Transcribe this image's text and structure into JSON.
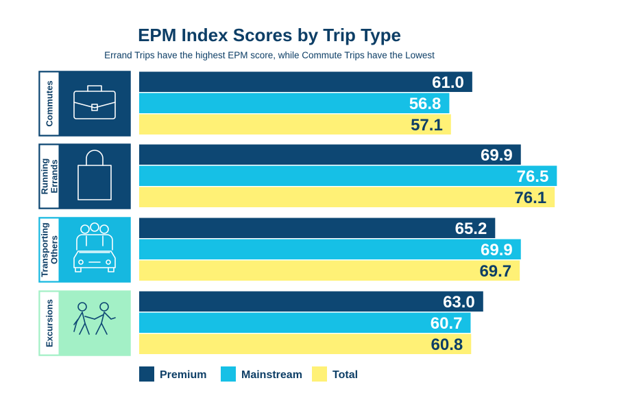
{
  "chart_data": {
    "type": "bar",
    "orientation": "horizontal",
    "title": "EPM Index Scores by Trip Type",
    "subtitle": "Errand Trips have the highest EPM score, while Commute Trips have the Lowest",
    "categories": [
      "Commutes",
      "Running Errands",
      "Transporting Others",
      "Excursions"
    ],
    "category_label_lines": [
      [
        "Commutes"
      ],
      [
        "Running",
        "Errands"
      ],
      [
        "Transporting",
        "Others"
      ],
      [
        "Excursions"
      ]
    ],
    "category_icons": [
      "briefcase-icon",
      "shopping-bag-icon",
      "people-car-icon",
      "walking-people-icon"
    ],
    "category_panel_colors": [
      "#0d4773",
      "#0d4773",
      "#16b8e0",
      "#a3f0c6"
    ],
    "series": [
      {
        "name": "Premium",
        "color": "#0d4773",
        "values": [
          61.0,
          69.9,
          65.2,
          63.0
        ]
      },
      {
        "name": "Mainstream",
        "color": "#16c0e6",
        "values": [
          56.8,
          76.5,
          69.9,
          60.7
        ]
      },
      {
        "name": "Total",
        "color": "#fff176",
        "values": [
          57.1,
          76.1,
          69.7,
          60.8
        ]
      }
    ],
    "value_labels": [
      [
        "61.0",
        "56.8",
        "57.1"
      ],
      [
        "69.9",
        "76.5",
        "76.1"
      ],
      [
        "65.2",
        "69.9",
        "69.7"
      ],
      [
        "63.0",
        "60.7",
        "60.8"
      ]
    ],
    "xlim": [
      0,
      80
    ],
    "grid": false,
    "legend_position": "bottom"
  }
}
